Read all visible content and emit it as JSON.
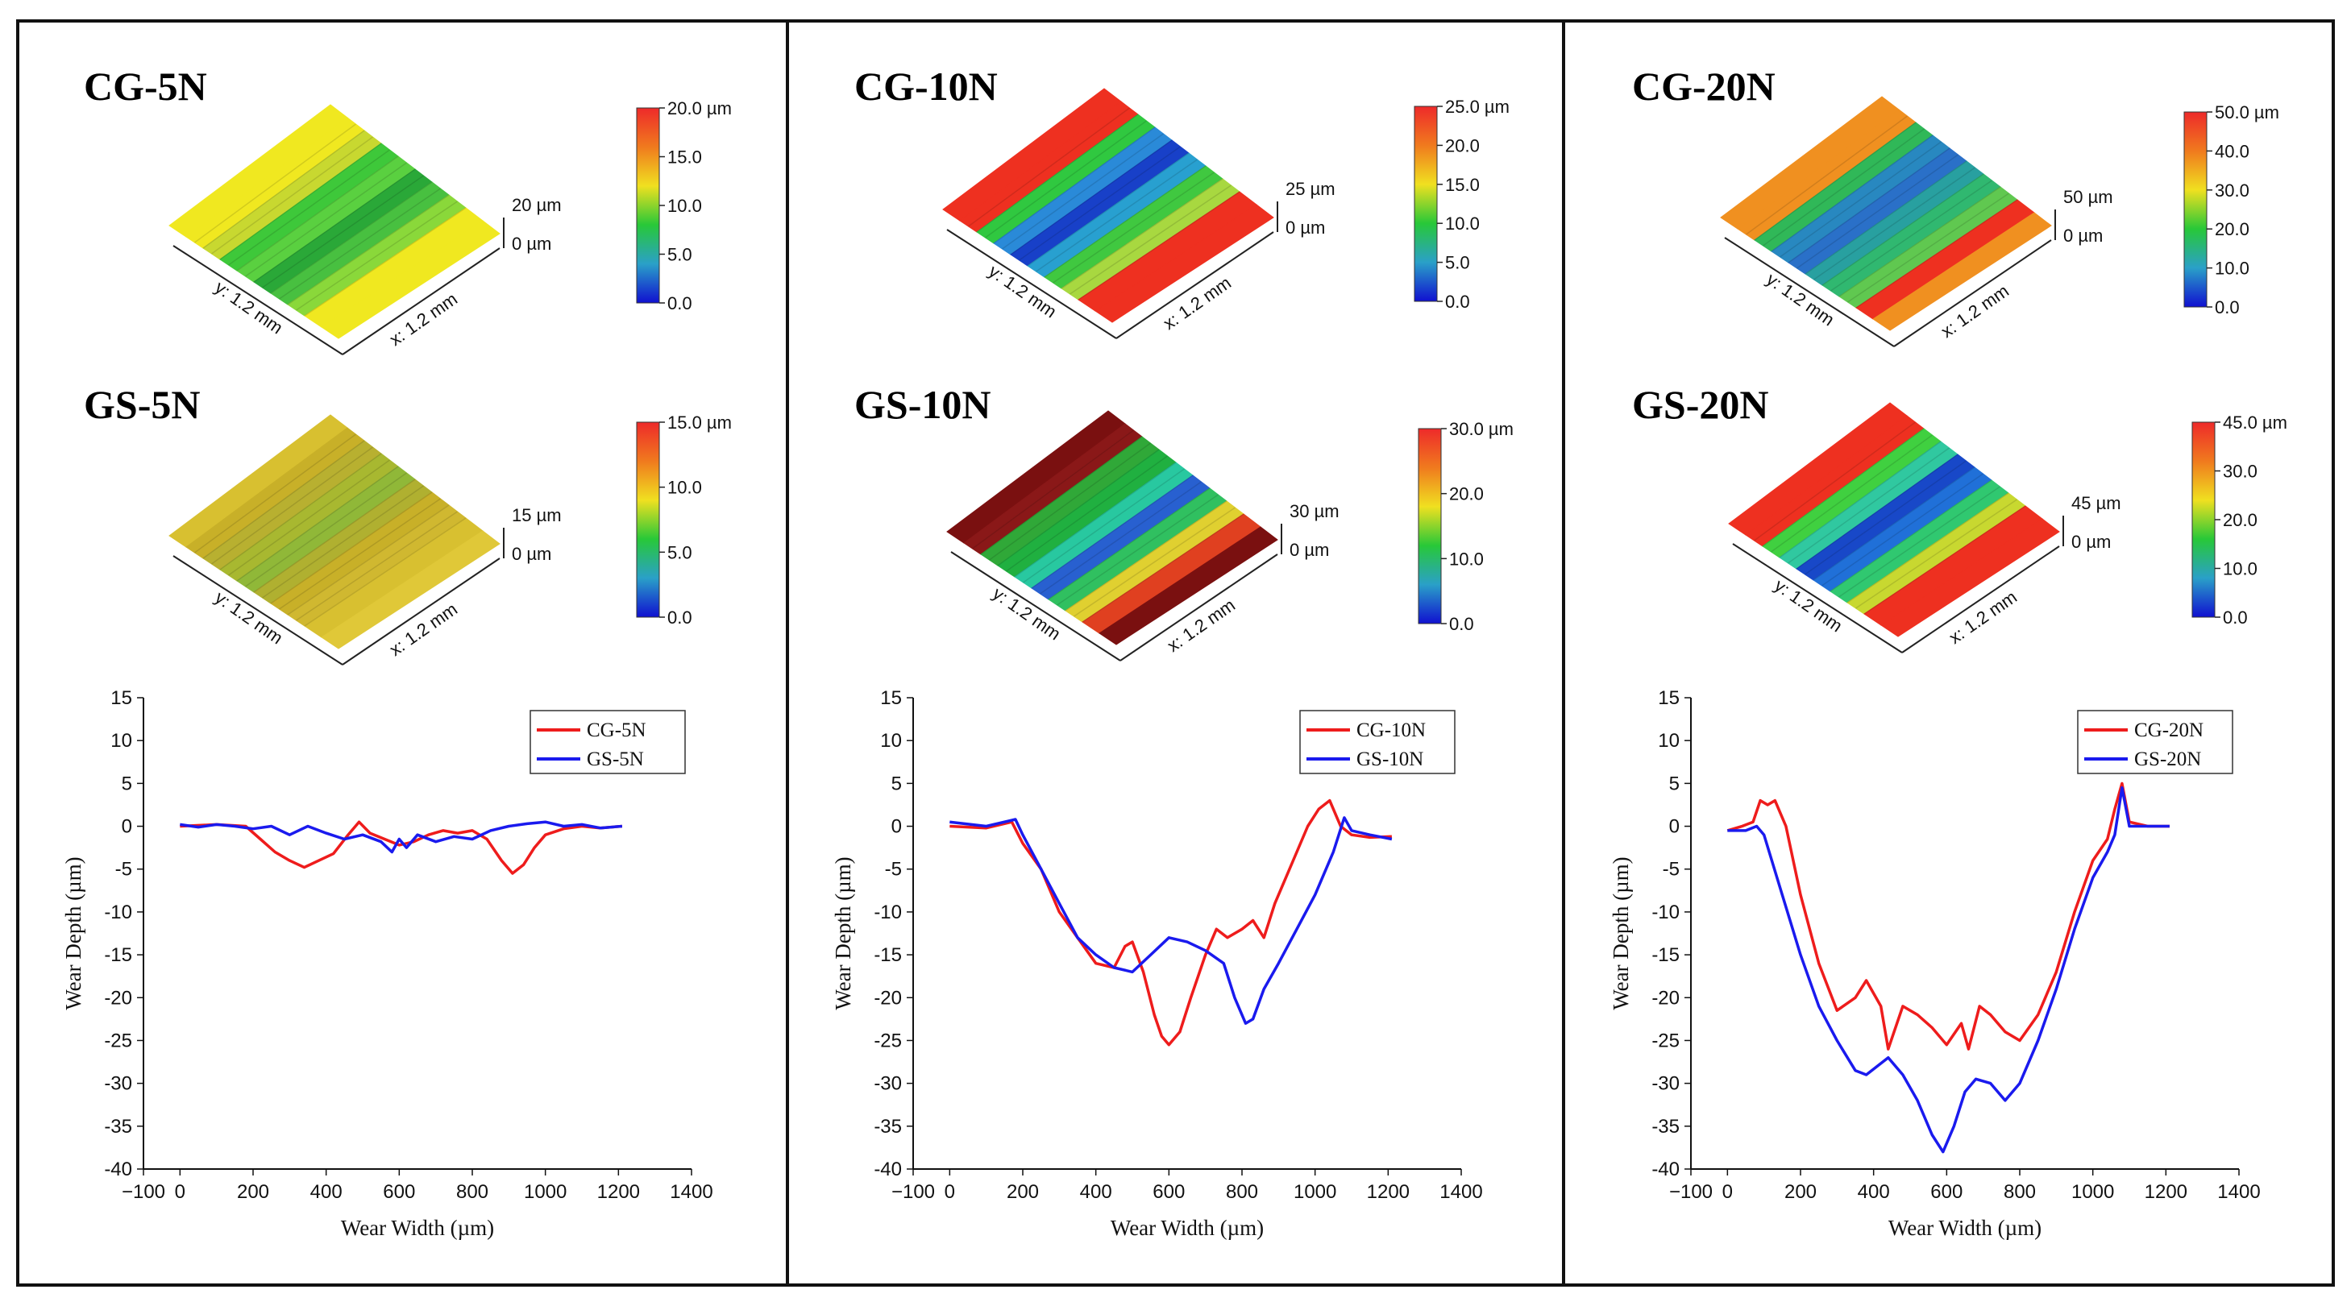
{
  "panels": [
    {
      "id": "5N",
      "top_title": "CG-5N",
      "bottom_title": "GS-5N",
      "top_surface": {
        "scale_label": "20 µm",
        "zero_label": "0 µm",
        "y_label": "y: 1.2 mm",
        "x_label": "x: 1.2 mm",
        "colorbar": {
          "max_label": "20.0 µm",
          "ticks": [
            "15.0",
            "10.0",
            "5.0",
            "0.0"
          ]
        }
      },
      "bottom_surface": {
        "scale_label": "15 µm",
        "zero_label": "0 µm",
        "y_label": "y: 1.2 mm",
        "x_label": "x: 1.2 mm",
        "colorbar": {
          "max_label": "15.0 µm",
          "ticks": [
            "10.0",
            "5.0",
            "0.0"
          ]
        }
      }
    },
    {
      "id": "10N",
      "top_title": "CG-10N",
      "bottom_title": "GS-10N",
      "top_surface": {
        "scale_label": "25 µm",
        "zero_label": "0 µm",
        "y_label": "y: 1.2 mm",
        "x_label": "x: 1.2 mm",
        "colorbar": {
          "max_label": "25.0 µm",
          "ticks": [
            "20.0",
            "15.0",
            "10.0",
            "5.0",
            "0.0"
          ]
        }
      },
      "bottom_surface": {
        "scale_label": "30 µm",
        "zero_label": "0 µm",
        "y_label": "y: 1.2 mm",
        "x_label": "x: 1.2 mm",
        "colorbar": {
          "max_label": "30.0 µm",
          "ticks": [
            "20.0",
            "10.0",
            "0.0"
          ]
        }
      }
    },
    {
      "id": "20N",
      "top_title": "CG-20N",
      "bottom_title": "GS-20N",
      "top_surface": {
        "scale_label": "50 µm",
        "zero_label": "0 µm",
        "y_label": "y: 1.2 mm",
        "x_label": "x: 1.2 mm",
        "colorbar": {
          "max_label": "50.0 µm",
          "ticks": [
            "40.0",
            "30.0",
            "20.0",
            "10.0",
            "0.0"
          ]
        }
      },
      "bottom_surface": {
        "scale_label": "45 µm",
        "zero_label": "0 µm",
        "y_label": "y: 1.2 mm",
        "x_label": "x: 1.2 mm",
        "colorbar": {
          "max_label": "45.0 µm",
          "ticks": [
            "30.0",
            "20.0",
            "10.0",
            "0.0"
          ]
        }
      }
    }
  ],
  "colors": {
    "cg": "#ee1c1c",
    "gs": "#1a1aee"
  },
  "chart_data": [
    {
      "type": "line",
      "xlabel": "Wear Width (µm)",
      "ylabel": "Wear Depth (µm)",
      "xlim": [
        -100,
        1400
      ],
      "ylim": [
        -40,
        15
      ],
      "xticks": [
        -100,
        0,
        200,
        400,
        600,
        800,
        1000,
        1200,
        1400
      ],
      "yticks": [
        15,
        10,
        5,
        0,
        -5,
        -10,
        -15,
        -20,
        -25,
        -30,
        -35,
        -40
      ],
      "legend": "top-right",
      "series": [
        {
          "name": "CG-5N",
          "color": "#ee1c1c",
          "x": [
            0,
            100,
            180,
            220,
            260,
            300,
            340,
            380,
            420,
            460,
            490,
            520,
            560,
            600,
            640,
            680,
            720,
            760,
            800,
            840,
            880,
            910,
            940,
            970,
            1000,
            1050,
            1100,
            1150,
            1210
          ],
          "y": [
            0,
            0.2,
            0,
            -1.5,
            -3,
            -4,
            -4.8,
            -4,
            -3.2,
            -1,
            0.5,
            -0.8,
            -1.5,
            -2.2,
            -1.8,
            -1,
            -0.5,
            -0.8,
            -0.5,
            -1.5,
            -4,
            -5.5,
            -4.5,
            -2.5,
            -1,
            -0.3,
            0,
            -0.2,
            0
          ]
        },
        {
          "name": "GS-5N",
          "color": "#1a1aee",
          "x": [
            0,
            50,
            100,
            150,
            200,
            250,
            300,
            350,
            400,
            450,
            500,
            550,
            580,
            600,
            620,
            650,
            700,
            750,
            800,
            850,
            900,
            950,
            1000,
            1050,
            1100,
            1150,
            1210
          ],
          "y": [
            0.2,
            -0.1,
            0.2,
            0,
            -0.3,
            0,
            -1,
            0,
            -0.8,
            -1.5,
            -1,
            -1.8,
            -3,
            -1.5,
            -2.5,
            -1,
            -1.8,
            -1.2,
            -1.5,
            -0.5,
            0,
            0.3,
            0.5,
            0,
            0.2,
            -0.2,
            0
          ]
        }
      ]
    },
    {
      "type": "line",
      "xlabel": "Wear Width (µm)",
      "ylabel": "Wear Depth (µm)",
      "xlim": [
        -100,
        1400
      ],
      "ylim": [
        -40,
        15
      ],
      "xticks": [
        -100,
        0,
        200,
        400,
        600,
        800,
        1000,
        1200,
        1400
      ],
      "yticks": [
        15,
        10,
        5,
        0,
        -5,
        -10,
        -15,
        -20,
        -25,
        -30,
        -35,
        -40
      ],
      "legend": "top-right",
      "series": [
        {
          "name": "CG-10N",
          "color": "#ee1c1c",
          "x": [
            0,
            100,
            170,
            200,
            250,
            300,
            350,
            400,
            450,
            480,
            500,
            530,
            560,
            580,
            600,
            630,
            660,
            700,
            730,
            760,
            800,
            830,
            860,
            890,
            920,
            950,
            980,
            1010,
            1040,
            1070,
            1100,
            1150,
            1210
          ],
          "y": [
            0,
            -0.2,
            0.5,
            -2,
            -5,
            -10,
            -13,
            -16,
            -16.5,
            -14,
            -13.5,
            -17,
            -22,
            -24.5,
            -25.5,
            -24,
            -20,
            -15,
            -12,
            -13,
            -12,
            -11,
            -13,
            -9,
            -6,
            -3,
            0,
            2,
            3,
            0,
            -1,
            -1.3,
            -1.2
          ]
        },
        {
          "name": "GS-10N",
          "color": "#1a1aee",
          "x": [
            0,
            100,
            180,
            200,
            250,
            300,
            350,
            400,
            450,
            500,
            550,
            600,
            650,
            700,
            750,
            780,
            810,
            830,
            860,
            900,
            950,
            1000,
            1050,
            1080,
            1100,
            1150,
            1210
          ],
          "y": [
            0.5,
            0,
            0.8,
            -1,
            -5,
            -9,
            -13,
            -15,
            -16.5,
            -17,
            -15,
            -13,
            -13.5,
            -14.5,
            -16,
            -20,
            -23,
            -22.5,
            -19,
            -16,
            -12,
            -8,
            -3,
            1,
            -0.5,
            -1,
            -1.5
          ]
        }
      ]
    },
    {
      "type": "line",
      "xlabel": "Wear Width (µm)",
      "ylabel": "Wear Depth (µm)",
      "xlim": [
        -100,
        1400
      ],
      "ylim": [
        -40,
        15
      ],
      "xticks": [
        -100,
        0,
        200,
        400,
        600,
        800,
        1000,
        1200,
        1400
      ],
      "yticks": [
        15,
        10,
        5,
        0,
        -5,
        -10,
        -15,
        -20,
        -25,
        -30,
        -35,
        -40
      ],
      "legend": "top-right",
      "series": [
        {
          "name": "CG-20N",
          "color": "#ee1c1c",
          "x": [
            0,
            40,
            70,
            90,
            110,
            130,
            160,
            200,
            250,
            300,
            350,
            380,
            420,
            440,
            480,
            520,
            560,
            600,
            640,
            660,
            690,
            720,
            760,
            800,
            850,
            900,
            950,
            1000,
            1040,
            1060,
            1080,
            1100,
            1150,
            1210
          ],
          "y": [
            -0.5,
            0,
            0.5,
            3,
            2.5,
            3,
            0,
            -8,
            -16,
            -21.5,
            -20,
            -18,
            -21,
            -26,
            -21,
            -22,
            -23.5,
            -25.5,
            -23,
            -26,
            -21,
            -22,
            -24,
            -25,
            -22,
            -17,
            -10,
            -4,
            -1.5,
            2,
            5,
            0.5,
            0,
            0
          ]
        },
        {
          "name": "GS-20N",
          "color": "#1a1aee",
          "x": [
            0,
            50,
            80,
            100,
            150,
            200,
            250,
            300,
            350,
            380,
            410,
            440,
            480,
            520,
            560,
            590,
            620,
            650,
            680,
            720,
            760,
            800,
            850,
            900,
            950,
            1000,
            1040,
            1060,
            1080,
            1100,
            1150,
            1210
          ],
          "y": [
            -0.5,
            -0.5,
            0,
            -1,
            -8,
            -15,
            -21,
            -25,
            -28.5,
            -29,
            -28,
            -27,
            -29,
            -32,
            -36,
            -38,
            -35,
            -31,
            -29.5,
            -30,
            -32,
            -30,
            -25,
            -19,
            -12,
            -6,
            -3,
            -1,
            4.5,
            0,
            0,
            0
          ]
        }
      ]
    }
  ]
}
